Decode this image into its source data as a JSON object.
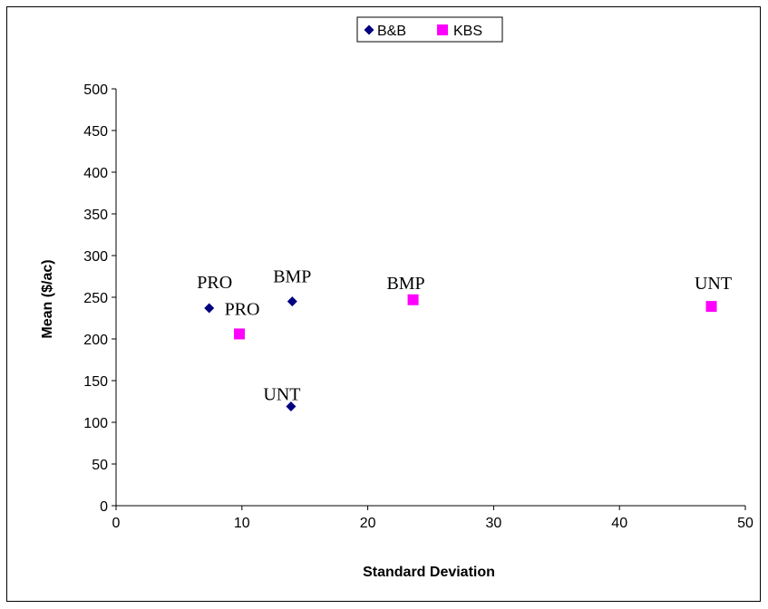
{
  "chart_data": {
    "type": "scatter",
    "title": "",
    "xlabel": "Standard Deviation",
    "ylabel": "Mean ($/ac)",
    "xlim": [
      0,
      50
    ],
    "ylim": [
      0,
      500
    ],
    "xticks": [
      0,
      10,
      20,
      30,
      40,
      50
    ],
    "yticks": [
      0,
      50,
      100,
      150,
      200,
      250,
      300,
      350,
      400,
      450,
      500
    ],
    "grid": false,
    "legend_position": "top-center",
    "series": [
      {
        "name": "B&B",
        "marker": "diamond",
        "color": "#000080",
        "points": [
          {
            "x": 7.4,
            "y": 237,
            "label": "PRO"
          },
          {
            "x": 14.0,
            "y": 245,
            "label": "BMP"
          },
          {
            "x": 13.9,
            "y": 119,
            "label": "UNT"
          }
        ]
      },
      {
        "name": "KBS",
        "marker": "square",
        "color": "#FF00FF",
        "points": [
          {
            "x": 9.8,
            "y": 206,
            "label": "PRO"
          },
          {
            "x": 23.6,
            "y": 247,
            "label": "BMP"
          },
          {
            "x": 47.3,
            "y": 239,
            "label": "UNT"
          }
        ]
      }
    ]
  }
}
